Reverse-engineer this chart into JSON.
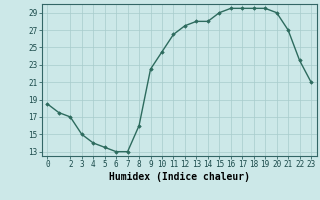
{
  "x": [
    0,
    1,
    2,
    3,
    4,
    5,
    6,
    7,
    8,
    9,
    10,
    11,
    12,
    13,
    14,
    15,
    16,
    17,
    18,
    19,
    20,
    21,
    22,
    23
  ],
  "y": [
    18.5,
    17.5,
    17.0,
    15.0,
    14.0,
    13.5,
    13.0,
    13.0,
    16.0,
    22.5,
    24.5,
    26.5,
    27.5,
    28.0,
    28.0,
    29.0,
    29.5,
    29.5,
    29.5,
    29.5,
    29.0,
    27.0,
    23.5,
    21.0
  ],
  "line_color": "#2d6b5e",
  "marker": "D",
  "markersize": 1.8,
  "linewidth": 1.0,
  "xlabel": "Humidex (Indice chaleur)",
  "xlabel_fontsize": 7,
  "xlim": [
    -0.5,
    23.5
  ],
  "ylim": [
    12.5,
    30.0
  ],
  "yticks": [
    13,
    15,
    17,
    19,
    21,
    23,
    25,
    27,
    29
  ],
  "xticks": [
    0,
    2,
    3,
    4,
    5,
    6,
    7,
    8,
    9,
    10,
    11,
    12,
    13,
    14,
    15,
    16,
    17,
    18,
    19,
    20,
    21,
    22,
    23
  ],
  "tick_fontsize": 5.5,
  "bg_color": "#cce8e8",
  "grid_color": "#a8cccc",
  "spine_color": "#336666"
}
